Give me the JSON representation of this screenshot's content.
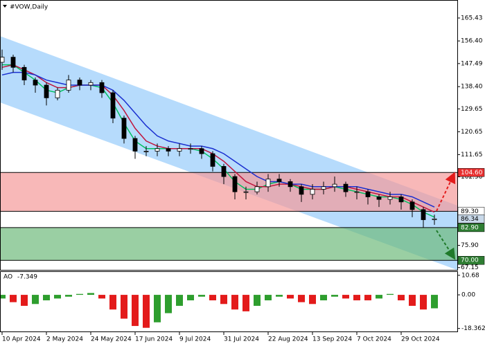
{
  "chart_data": [
    {
      "type": "candlestick",
      "title": "#VOW,Daily",
      "categories": [
        "10 Apr 2024",
        null,
        null,
        null,
        "2 May 2024",
        null,
        null,
        null,
        "24 May 2024",
        null,
        null,
        null,
        "17 Jun 2024",
        null,
        null,
        null,
        "9 Jul 2024",
        null,
        null,
        null,
        "31 Jul 2024",
        null,
        null,
        null,
        "22 Aug 2024",
        null,
        null,
        null,
        "13 Sep 2024",
        null,
        null,
        null,
        "7 Oct 2024",
        null,
        null,
        null,
        "29 Oct 2024",
        null,
        null,
        null
      ],
      "open": [
        148,
        150,
        146,
        141,
        139,
        134,
        137,
        141,
        139,
        140,
        136,
        126,
        118,
        113,
        113,
        114,
        113,
        114,
        114,
        112,
        107,
        103,
        97,
        97,
        99,
        102,
        101,
        99,
        96,
        98,
        99,
        100,
        97,
        97,
        95,
        94,
        95,
        93,
        90,
        86
      ],
      "high": [
        153,
        151,
        147,
        142,
        140,
        138,
        143,
        142,
        141,
        141,
        137,
        127,
        119,
        115,
        116,
        115,
        116,
        116,
        115,
        113,
        108,
        104,
        99,
        101,
        104,
        104,
        102,
        100,
        100,
        101,
        103,
        101,
        99,
        98,
        96,
        97,
        96,
        94,
        91,
        88
      ],
      "low": [
        145,
        144,
        139,
        136,
        131,
        133,
        136,
        137,
        137,
        134,
        124,
        116,
        110,
        111,
        111,
        111,
        111,
        112,
        110,
        105,
        100,
        94,
        94,
        96,
        97,
        99,
        97,
        93,
        94,
        96,
        97,
        95,
        94,
        92,
        91,
        92,
        90,
        87,
        83,
        84
      ],
      "close": [
        150,
        146,
        141,
        139,
        134,
        137,
        141,
        139,
        140,
        136,
        126,
        118,
        113,
        113,
        114,
        113,
        114,
        114,
        112,
        107,
        103,
        97,
        97,
        99,
        102,
        101,
        99,
        96,
        98,
        99,
        100,
        97,
        97,
        95,
        94,
        95,
        93,
        90,
        86,
        86.34
      ],
      "series": [
        {
          "color": "#00c060",
          "values": [
            147,
            147,
            144,
            141,
            137,
            136,
            138,
            139,
            139,
            138,
            132,
            124,
            117,
            114,
            114,
            114,
            114,
            114,
            113,
            110,
            106,
            101,
            98,
            98,
            100,
            101,
            100,
            98,
            98,
            98,
            99,
            98,
            97,
            96,
            95,
            95,
            94,
            92,
            89,
            87
          ]
        },
        {
          "color": "#c0143c",
          "values": [
            146,
            147,
            145,
            143,
            140,
            138,
            138,
            139,
            139,
            139,
            135,
            129,
            122,
            117,
            115,
            114,
            114,
            114,
            114,
            112,
            109,
            105,
            101,
            99,
            99,
            100,
            100,
            99,
            98,
            98,
            99,
            99,
            98,
            97,
            96,
            95,
            95,
            93,
            91,
            89
          ]
        },
        {
          "color": "#1a2fd0",
          "values": [
            143,
            144,
            144,
            143,
            141,
            140,
            139,
            139,
            139,
            139,
            137,
            133,
            128,
            123,
            119,
            117,
            116,
            115,
            115,
            114,
            112,
            109,
            106,
            103,
            101,
            101,
            100,
            100,
            99,
            99,
            99,
            99,
            99,
            98,
            97,
            96,
            96,
            95,
            93,
            91
          ]
        }
      ],
      "channel": {
        "color": "#a9d5fb",
        "upper": [
          158.3,
          91.6
        ],
        "lower": [
          132.2,
          66.2
        ]
      },
      "zones": [
        {
          "color": "#f59a9a",
          "range": [
            89.3,
            104.6
          ]
        },
        {
          "color": "#6fba7c",
          "range": [
            70,
            82.9
          ]
        }
      ],
      "price_labels": [
        {
          "value": 104.6,
          "label": "104.60",
          "color": "#e83030",
          "text_color": "#ffffff"
        },
        {
          "value": 89.3,
          "label": "89.30",
          "color": "#ffffff",
          "text_color": "#000000"
        },
        {
          "value": 86.34,
          "label": "86.34",
          "color": "#c8d8e8",
          "text_color": "#000000"
        },
        {
          "value": 82.9,
          "label": "82.90",
          "color": "#2e7d32",
          "text_color": "#ffffff"
        },
        {
          "value": 70,
          "label": "70.00",
          "color": "#2e7d32",
          "text_color": "#ffffff"
        }
      ],
      "ylim": [
        66.25,
        171.7
      ],
      "yticks": [
        165.43,
        {
          "value": 156.4,
          "label": "156.40"
        },
        147.49,
        {
          "value": 138.4,
          "label": "138.40"
        },
        129.65,
        120.65,
        111.65,
        {
          "value": 102.9,
          "label": "102.90"
        },
        {
          "value": 75.9,
          "label": "75.90"
        },
        67.15
      ]
    },
    {
      "type": "bar",
      "title": "AO",
      "values": [
        -2,
        -4,
        -6,
        -5,
        -3,
        -2,
        -1,
        0.5,
        1,
        -2,
        -8,
        -13,
        -17,
        -18,
        -15,
        -10,
        -6,
        -3,
        -1,
        -3,
        -5,
        -8,
        -9,
        -6,
        -3,
        -1,
        -2,
        -4,
        -5,
        -3,
        -1,
        -2,
        -3,
        -3,
        -2,
        0.5,
        -3,
        -6,
        -8,
        -7.349
      ],
      "up_color": "#2e9e2e",
      "down_color": "#e31b1b",
      "ylim": [
        -20,
        12.5
      ],
      "yticks": [
        10.68,
        {
          "value": 0,
          "label": "0.00"
        },
        -18.362
      ]
    }
  ]
}
